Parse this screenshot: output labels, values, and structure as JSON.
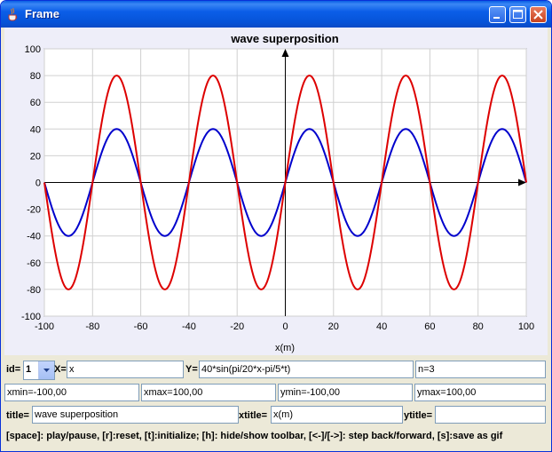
{
  "window": {
    "title": "Frame",
    "icon": "java-cup-icon",
    "controls": [
      "minimize-icon",
      "maximize-icon",
      "close-icon"
    ]
  },
  "chart_data": {
    "type": "line",
    "title": "wave superposition",
    "xlabel": "x(m)",
    "ylabel": "",
    "xlim": [
      -100,
      100
    ],
    "ylim": [
      -100,
      100
    ],
    "xticks": [
      -100,
      -80,
      -60,
      -40,
      -20,
      0,
      20,
      40,
      60,
      80,
      100
    ],
    "yticks": [
      -100,
      -80,
      -60,
      -40,
      -20,
      0,
      20,
      40,
      60,
      80,
      100
    ],
    "grid": true,
    "series": [
      {
        "formula": "40*sin(pi/20*x)",
        "amplitude": 40,
        "period": 40,
        "color": "#0000cc"
      },
      {
        "formula": "80*sin(pi/20*x)",
        "amplitude": 80,
        "period": 40,
        "color": "#dd0000"
      }
    ]
  },
  "toolbar": {
    "id_label": "id=",
    "id_value": "1",
    "x_label": "X=",
    "x_value": "x",
    "y_label": "Y=",
    "y_value": "40*sin(pi/20*x-pi/5*t)",
    "n_value": "n=3",
    "xmin_value": "xmin=-100,00",
    "xmax_value": "xmax=100,00",
    "ymin_value": "ymin=-100,00",
    "ymax_value": "ymax=100,00",
    "title_label": "title=",
    "title_value": "wave superposition",
    "xtitle_label": "xtitle=",
    "xtitle_value": "x(m)",
    "ytitle_label": "ytitle=",
    "ytitle_value": ""
  },
  "help_text": "[space]: play/pause, [r]:reset,  [t]:initialize; [h]: hide/show toolbar, [<-]/[->]: step back/forward, [s]:save as gif"
}
